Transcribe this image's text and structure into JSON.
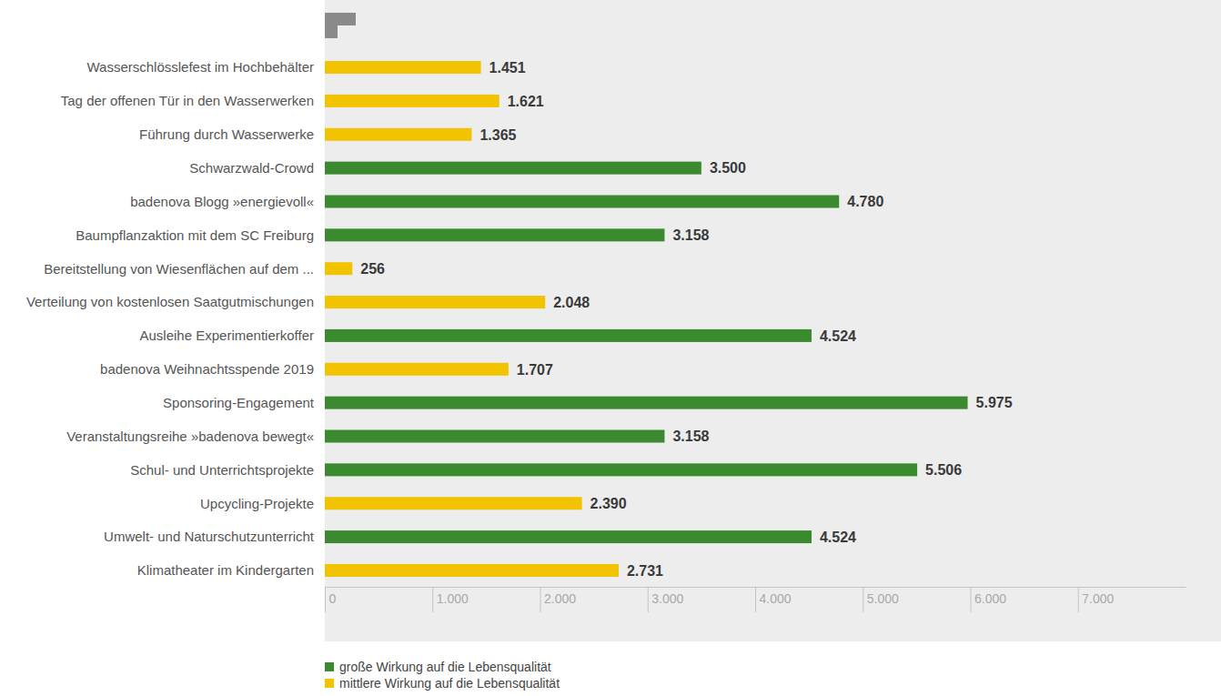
{
  "chart_data": {
    "type": "bar",
    "orientation": "horizontal",
    "categories": [
      "Wasserschlösslefest im Hochbehälter",
      "Tag der offenen Tür in den Wasserwerken",
      "Führung durch Wasserwerke",
      "Schwarzwald-Crowd",
      "badenova Blogg »energievoll«",
      "Baumpflanzaktion mit dem SC Freiburg",
      "Bereitstellung von Wiesenflächen auf dem ...",
      "Verteilung von kostenlosen Saatgutmischungen",
      "Ausleihe Experimentierkoffer",
      "badenova Weihnachtsspende 2019",
      "Sponsoring-Engagement",
      "Veranstaltungsreihe »badenova bewegt«",
      "Schul- und Unterrichtsprojekte",
      "Upcycling-Projekte",
      "Umwelt- und Naturschutzunterricht",
      "Klimatheater im Kindergarten"
    ],
    "series": [
      {
        "name": "große Wirkung auf die Lebensqualität",
        "color": "#3b8a2f",
        "values": [
          null,
          null,
          null,
          3500,
          4780,
          3158,
          null,
          null,
          4524,
          null,
          5975,
          3158,
          5506,
          null,
          4524,
          null
        ],
        "value_labels": [
          null,
          null,
          null,
          "3.500",
          "4.780",
          "3.158",
          null,
          null,
          "4.524",
          null,
          "5.975",
          "3.158",
          "5.506",
          null,
          "4.524",
          null
        ]
      },
      {
        "name": "mittlere Wirkung auf die Lebensqualität",
        "color": "#f2c300",
        "values": [
          1451,
          1621,
          1365,
          null,
          null,
          null,
          256,
          2048,
          null,
          1707,
          null,
          null,
          null,
          2390,
          null,
          2731
        ],
        "value_labels": [
          "1.451",
          "1.621",
          "1.365",
          null,
          null,
          null,
          "256",
          "2.048",
          null,
          "1.707",
          null,
          null,
          null,
          "2.390",
          null,
          "2.731"
        ]
      }
    ],
    "xlim": [
      0,
      8000
    ],
    "xticks": [
      0,
      {
        "value": 1000,
        "label": "1.000"
      },
      {
        "value": 2000,
        "label": "2.000"
      },
      {
        "value": 3000,
        "label": "3.000"
      },
      {
        "value": 4000,
        "label": "4.000"
      },
      {
        "value": 5000,
        "label": "5.000"
      },
      {
        "value": 6000,
        "label": "6.000"
      },
      {
        "value": 7000,
        "label": "7.000"
      }
    ],
    "grid": false,
    "data_labels": true,
    "legend": "bottom"
  }
}
